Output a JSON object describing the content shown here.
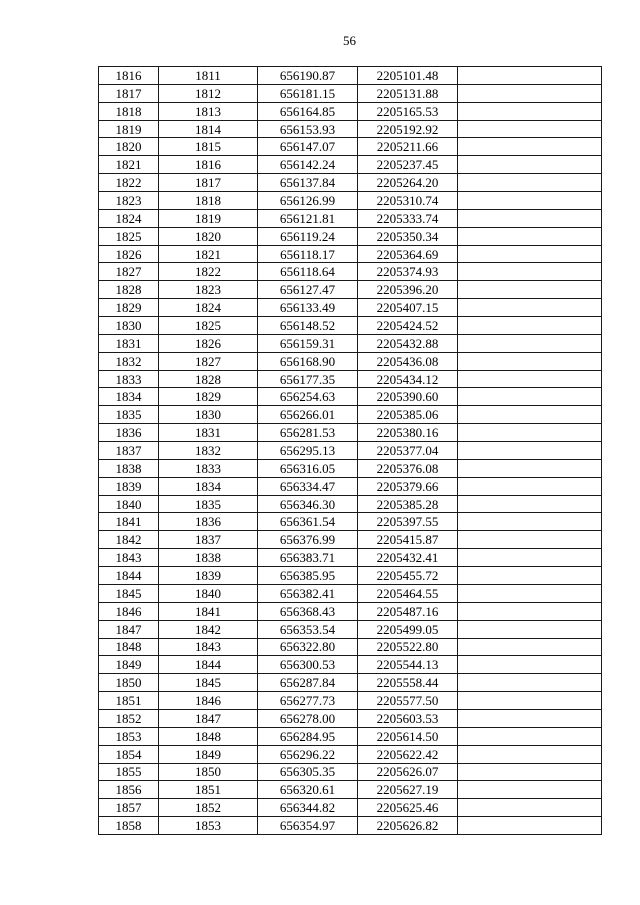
{
  "page": {
    "number": "56"
  },
  "table": {
    "rows": [
      [
        "1816",
        "1811",
        "656190.87",
        "2205101.48",
        ""
      ],
      [
        "1817",
        "1812",
        "656181.15",
        "2205131.88",
        ""
      ],
      [
        "1818",
        "1813",
        "656164.85",
        "2205165.53",
        ""
      ],
      [
        "1819",
        "1814",
        "656153.93",
        "2205192.92",
        ""
      ],
      [
        "1820",
        "1815",
        "656147.07",
        "2205211.66",
        ""
      ],
      [
        "1821",
        "1816",
        "656142.24",
        "2205237.45",
        ""
      ],
      [
        "1822",
        "1817",
        "656137.84",
        "2205264.20",
        ""
      ],
      [
        "1823",
        "1818",
        "656126.99",
        "2205310.74",
        ""
      ],
      [
        "1824",
        "1819",
        "656121.81",
        "2205333.74",
        ""
      ],
      [
        "1825",
        "1820",
        "656119.24",
        "2205350.34",
        ""
      ],
      [
        "1826",
        "1821",
        "656118.17",
        "2205364.69",
        ""
      ],
      [
        "1827",
        "1822",
        "656118.64",
        "2205374.93",
        ""
      ],
      [
        "1828",
        "1823",
        "656127.47",
        "2205396.20",
        ""
      ],
      [
        "1829",
        "1824",
        "656133.49",
        "2205407.15",
        ""
      ],
      [
        "1830",
        "1825",
        "656148.52",
        "2205424.52",
        ""
      ],
      [
        "1831",
        "1826",
        "656159.31",
        "2205432.88",
        ""
      ],
      [
        "1832",
        "1827",
        "656168.90",
        "2205436.08",
        ""
      ],
      [
        "1833",
        "1828",
        "656177.35",
        "2205434.12",
        ""
      ],
      [
        "1834",
        "1829",
        "656254.63",
        "2205390.60",
        ""
      ],
      [
        "1835",
        "1830",
        "656266.01",
        "2205385.06",
        ""
      ],
      [
        "1836",
        "1831",
        "656281.53",
        "2205380.16",
        ""
      ],
      [
        "1837",
        "1832",
        "656295.13",
        "2205377.04",
        ""
      ],
      [
        "1838",
        "1833",
        "656316.05",
        "2205376.08",
        ""
      ],
      [
        "1839",
        "1834",
        "656334.47",
        "2205379.66",
        ""
      ],
      [
        "1840",
        "1835",
        "656346.30",
        "2205385.28",
        ""
      ],
      [
        "1841",
        "1836",
        "656361.54",
        "2205397.55",
        ""
      ],
      [
        "1842",
        "1837",
        "656376.99",
        "2205415.87",
        ""
      ],
      [
        "1843",
        "1838",
        "656383.71",
        "2205432.41",
        ""
      ],
      [
        "1844",
        "1839",
        "656385.95",
        "2205455.72",
        ""
      ],
      [
        "1845",
        "1840",
        "656382.41",
        "2205464.55",
        ""
      ],
      [
        "1846",
        "1841",
        "656368.43",
        "2205487.16",
        ""
      ],
      [
        "1847",
        "1842",
        "656353.54",
        "2205499.05",
        ""
      ],
      [
        "1848",
        "1843",
        "656322.80",
        "2205522.80",
        ""
      ],
      [
        "1849",
        "1844",
        "656300.53",
        "2205544.13",
        ""
      ],
      [
        "1850",
        "1845",
        "656287.84",
        "2205558.44",
        ""
      ],
      [
        "1851",
        "1846",
        "656277.73",
        "2205577.50",
        ""
      ],
      [
        "1852",
        "1847",
        "656278.00",
        "2205603.53",
        ""
      ],
      [
        "1853",
        "1848",
        "656284.95",
        "2205614.50",
        ""
      ],
      [
        "1854",
        "1849",
        "656296.22",
        "2205622.42",
        ""
      ],
      [
        "1855",
        "1850",
        "656305.35",
        "2205626.07",
        ""
      ],
      [
        "1856",
        "1851",
        "656320.61",
        "2205627.19",
        ""
      ],
      [
        "1857",
        "1852",
        "656344.82",
        "2205625.46",
        ""
      ],
      [
        "1858",
        "1853",
        "656354.97",
        "2205626.82",
        ""
      ]
    ]
  }
}
